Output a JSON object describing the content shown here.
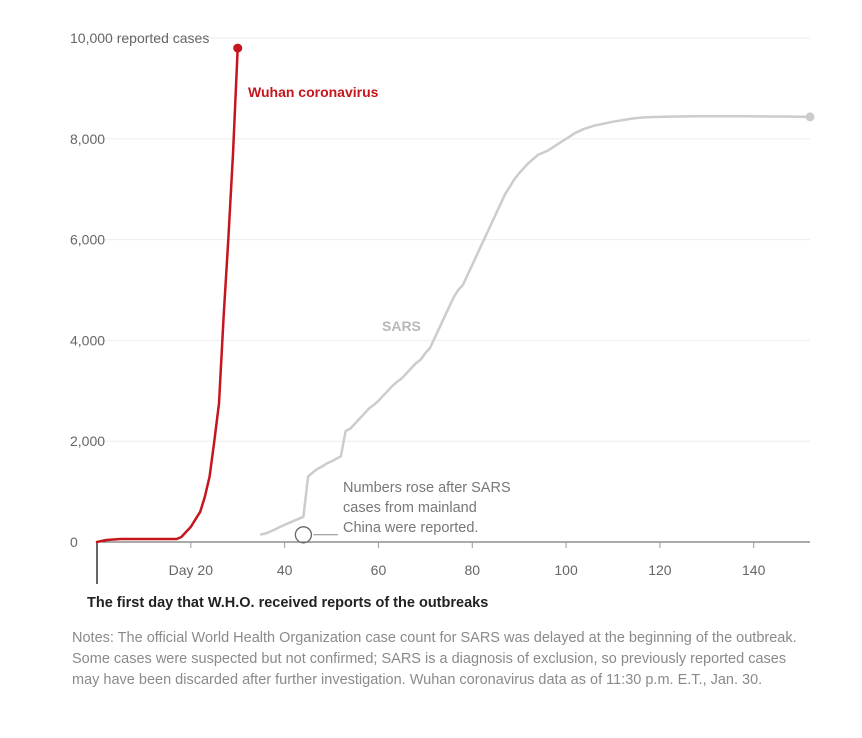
{
  "chart_data": {
    "type": "line",
    "title": "",
    "xlabel": "The first day that W.H.O. received reports of the outbreaks",
    "ylabel": "reported cases",
    "xlim": [
      0,
      152
    ],
    "ylim": [
      0,
      10000
    ],
    "yticks": [
      {
        "value": 0,
        "label": "0"
      },
      {
        "value": 2000,
        "label": "2,000"
      },
      {
        "value": 4000,
        "label": "4,000"
      },
      {
        "value": 6000,
        "label": "6,000"
      },
      {
        "value": 8000,
        "label": "8,000"
      },
      {
        "value": 10000,
        "label": "10,000 reported cases"
      }
    ],
    "xticks": [
      {
        "value": 20,
        "label": "Day 20"
      },
      {
        "value": 40,
        "label": "40"
      },
      {
        "value": 60,
        "label": "60"
      },
      {
        "value": 80,
        "label": "80"
      },
      {
        "value": 100,
        "label": "100"
      },
      {
        "value": 120,
        "label": "120"
      },
      {
        "value": 140,
        "label": "140"
      }
    ],
    "series": [
      {
        "name": "Wuhan coronavirus",
        "label": "Wuhan coronavirus",
        "color": "#c4161c",
        "x": [
          0,
          2,
          5,
          10,
          15,
          17,
          18,
          19,
          20,
          21,
          22,
          23,
          24,
          25,
          26,
          27,
          28,
          29,
          30
        ],
        "y": [
          0,
          40,
          60,
          60,
          60,
          60,
          100,
          200,
          300,
          450,
          600,
          900,
          1300,
          2000,
          2750,
          4500,
          6000,
          7700,
          9800
        ]
      },
      {
        "name": "SARS",
        "label": "SARS",
        "color": "#cccccc",
        "x": [
          35,
          36,
          37,
          38,
          39,
          40,
          41,
          42,
          43,
          44,
          45,
          46,
          47,
          48,
          49,
          50,
          51,
          52,
          53,
          54,
          55,
          56,
          57,
          58,
          59,
          60,
          61,
          62,
          63,
          64,
          65,
          66,
          67,
          68,
          69,
          70,
          71,
          72,
          73,
          74,
          75,
          76,
          77,
          78,
          79,
          80,
          81,
          82,
          83,
          84,
          85,
          86,
          87,
          88,
          89,
          90,
          91,
          92,
          93,
          94,
          95,
          96,
          97,
          98,
          99,
          100,
          101,
          102,
          103,
          104,
          105,
          106,
          107,
          108,
          109,
          110,
          112,
          114,
          116,
          118,
          120,
          122,
          124,
          126,
          128,
          130,
          132,
          134,
          136,
          138,
          140,
          142,
          144,
          146,
          148,
          150,
          152
        ],
        "y": [
          150,
          170,
          210,
          250,
          300,
          340,
          380,
          420,
          460,
          500,
          1300,
          1380,
          1450,
          1500,
          1560,
          1600,
          1650,
          1700,
          2200,
          2250,
          2350,
          2450,
          2550,
          2650,
          2720,
          2800,
          2900,
          3000,
          3100,
          3180,
          3250,
          3350,
          3450,
          3550,
          3620,
          3750,
          3850,
          4050,
          4250,
          4450,
          4650,
          4850,
          5000,
          5100,
          5300,
          5500,
          5700,
          5900,
          6100,
          6300,
          6500,
          6700,
          6900,
          7050,
          7200,
          7320,
          7420,
          7520,
          7600,
          7680,
          7720,
          7760,
          7820,
          7880,
          7940,
          8000,
          8060,
          8120,
          8160,
          8200,
          8230,
          8260,
          8280,
          8300,
          8320,
          8340,
          8370,
          8400,
          8420,
          8430,
          8435,
          8440,
          8442,
          8445,
          8447,
          8448,
          8448,
          8448,
          8447,
          8446,
          8445,
          8444,
          8443,
          8442,
          8440,
          8437,
          8435
        ]
      }
    ],
    "annotations": [
      {
        "x": 44,
        "y": 500,
        "lines": [
          "Numbers rose after SARS",
          "cases from mainland",
          "China were reported."
        ]
      }
    ],
    "grid": true,
    "legend": "inline labels"
  },
  "caption": "The first day that W.H.O. received reports of the outbreaks",
  "notes": "Notes: The official World Health Organization case count for SARS was delayed at the beginning of the outbreak. Some cases were suspected but not confirmed; SARS is a diagnosis of exclusion, so previously reported cases may have been discarded after further investigation. Wuhan coronavirus data as of 11:30 p.m. E.T., Jan. 30.",
  "colors": {
    "wuhan": "#c4161c",
    "sars": "#cccccc",
    "grid": "#eeeeee",
    "axis": "#555555"
  }
}
